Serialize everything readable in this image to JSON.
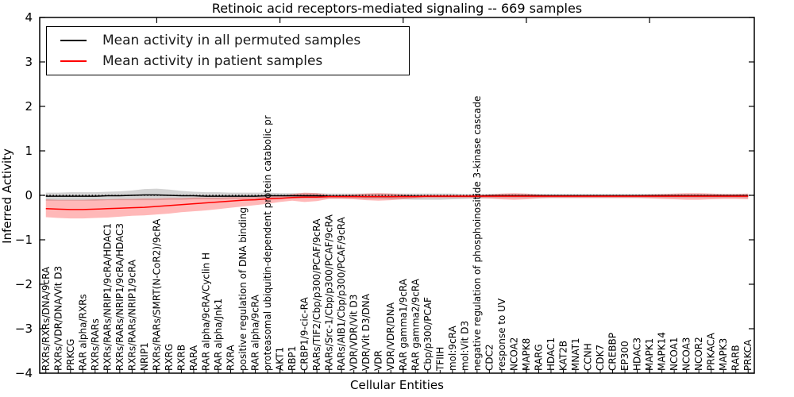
{
  "legend": {
    "items": [
      {
        "label": "Mean activity in all permuted samples",
        "color": "#000000"
      },
      {
        "label": "Mean activity in patient samples",
        "color": "#ff0000"
      }
    ]
  },
  "chart_data": {
    "type": "line",
    "title": "Retinoic acid receptors-mediated signaling -- 669 samples",
    "xlabel": "Cellular Entities",
    "ylabel": "Inferred Activity",
    "ylim": [
      -4,
      4
    ],
    "yticks": [
      4,
      3,
      2,
      1,
      0,
      -1,
      -2,
      -3,
      -4
    ],
    "yticklabels": [
      "4",
      "3",
      "2",
      "1",
      "0",
      "−1",
      "−2",
      "−3",
      "−4"
    ],
    "grid": false,
    "legend_position": "upper left",
    "zero_line": {
      "y": 0,
      "style": "dotted",
      "color": "#000000"
    },
    "categories": [
      "RXRs/RXRs/DNA/9cRA",
      "RXRs/VDR/DNA/Vit D3",
      "PRKCG",
      "RAR alpha/RXRs",
      "RXRs/RARs",
      "RXRs/RARs/NRIP1/9cRA/HDAC1",
      "RXRs/RARs/NRIP1/9cRA/HDAC3",
      "RXRs/RARs/NRIP1/9cRA",
      "NRIP1",
      "RXRs/RARs/SMRT(N-CoR2)/9cRA",
      "RXRG",
      "RXRB",
      "RARA",
      "RAR alpha/9cRA/Cyclin H",
      "RAR alpha/Jnk1",
      "RXRA",
      "positive regulation of DNA binding",
      "RAR alpha/9cRA",
      "proteasomal ubiquitin-dependent protein catabolic pr",
      "AKT1",
      "RBP1",
      "CRBP1/9-cic-RA",
      "RARs/TIF2/Cbp/p300/PCAF/9cRA",
      "RARs/Src-1/Cbp/p300/PCAF/9cRA",
      "RARs/AIB1/Cbp/p300/PCAF/9cRA",
      "VDR/VDR/Vit D3",
      "VDR/Vit D3/DNA",
      "VDR",
      "VDR/VDR/DNA",
      "RAR gamma1/9cRA",
      "RAR gamma2/9cRA",
      "Cbp/p300/PCAF",
      "TFIIH",
      "mol:9cRA",
      "mol:Vit D3",
      "negative regulation of phosphoinositide 3-kinase cascade",
      "CDC2",
      "response to UV",
      "NCOA2",
      "MAPK8",
      "RARG",
      "HDAC1",
      "KAT2B",
      "MNAT1",
      "CCNH",
      "CDK7",
      "CREBBP",
      "EP300",
      "HDAC3",
      "MAPK1",
      "MAPK14",
      "NCOA1",
      "NCOA3",
      "NCOR2",
      "PRKACA",
      "MAPK3",
      "RARB",
      "PRKCA"
    ],
    "series": [
      {
        "name": "Mean activity in all permuted samples",
        "color": "#000000",
        "values": [
          -0.02,
          -0.02,
          -0.02,
          -0.02,
          -0.02,
          -0.01,
          -0.01,
          0.0,
          0.01,
          0.01,
          0.0,
          -0.01,
          -0.01,
          -0.02,
          -0.02,
          -0.02,
          -0.02,
          -0.02,
          -0.01,
          -0.01,
          -0.01,
          -0.01,
          -0.01,
          -0.02,
          -0.02,
          -0.02,
          -0.03,
          -0.03,
          -0.03,
          -0.02,
          -0.02,
          -0.02,
          -0.02,
          -0.02,
          -0.02,
          -0.02,
          -0.01,
          -0.01,
          -0.01,
          -0.01,
          -0.01,
          -0.01,
          -0.01,
          -0.01,
          -0.01,
          -0.01,
          -0.01,
          -0.01,
          -0.01,
          -0.01,
          -0.01,
          -0.01,
          -0.01,
          -0.01,
          -0.01,
          -0.01,
          -0.01,
          -0.01
        ]
      },
      {
        "name": "Mean activity in patient samples",
        "color": "#ff0000",
        "values": [
          -0.3,
          -0.31,
          -0.32,
          -0.32,
          -0.31,
          -0.3,
          -0.29,
          -0.28,
          -0.27,
          -0.25,
          -0.23,
          -0.21,
          -0.19,
          -0.17,
          -0.15,
          -0.13,
          -0.11,
          -0.1,
          -0.08,
          -0.07,
          -0.05,
          -0.04,
          -0.04,
          -0.03,
          -0.03,
          -0.03,
          -0.03,
          -0.03,
          -0.03,
          -0.03,
          -0.03,
          -0.02,
          -0.02,
          -0.02,
          -0.02,
          -0.02,
          -0.02,
          -0.02,
          -0.02,
          -0.02,
          -0.02,
          -0.02,
          -0.02,
          -0.02,
          -0.02,
          -0.02,
          -0.02,
          -0.02,
          -0.02,
          -0.02,
          -0.02,
          -0.02,
          -0.02,
          -0.02,
          -0.02,
          -0.02,
          -0.02,
          -0.02
        ]
      }
    ],
    "bands": [
      {
        "name": "permuted-samples-range",
        "color": "#808080",
        "opacity": 0.35,
        "upper": [
          0.06,
          0.06,
          0.07,
          0.07,
          0.07,
          0.08,
          0.09,
          0.11,
          0.14,
          0.15,
          0.13,
          0.1,
          0.08,
          0.07,
          0.07,
          0.06,
          0.06,
          0.06,
          0.06,
          0.05,
          0.05,
          0.05,
          0.05,
          0.04,
          0.04,
          0.04,
          0.04,
          0.04,
          0.04,
          0.04,
          0.04,
          0.04,
          0.04,
          0.04,
          0.03,
          0.03,
          0.03,
          0.03,
          0.03,
          0.03,
          0.03,
          0.03,
          0.03,
          0.03,
          0.03,
          0.03,
          0.03,
          0.03,
          0.03,
          0.03,
          0.03,
          0.03,
          0.03,
          0.03,
          0.03,
          0.03,
          0.03,
          0.03
        ],
        "lower": [
          -0.12,
          -0.12,
          -0.12,
          -0.12,
          -0.12,
          -0.11,
          -0.11,
          -0.11,
          -0.11,
          -0.11,
          -0.1,
          -0.1,
          -0.09,
          -0.09,
          -0.09,
          -0.08,
          -0.08,
          -0.08,
          -0.08,
          -0.07,
          -0.07,
          -0.07,
          -0.07,
          -0.07,
          -0.07,
          -0.07,
          -0.08,
          -0.08,
          -0.09,
          -0.09,
          -0.1,
          -0.1,
          -0.1,
          -0.09,
          -0.08,
          -0.07,
          -0.07,
          -0.06,
          -0.06,
          -0.06,
          -0.06,
          -0.06,
          -0.06,
          -0.06,
          -0.06,
          -0.06,
          -0.06,
          -0.06,
          -0.06,
          -0.06,
          -0.06,
          -0.06,
          -0.06,
          -0.06,
          -0.06,
          -0.06,
          -0.06,
          -0.06
        ]
      },
      {
        "name": "patient-samples-range",
        "color": "#ff0000",
        "opacity": 0.28,
        "upper": [
          -0.09,
          -0.1,
          -0.1,
          -0.1,
          -0.09,
          -0.09,
          -0.08,
          -0.08,
          -0.07,
          -0.07,
          -0.06,
          -0.06,
          -0.05,
          -0.05,
          -0.05,
          -0.04,
          -0.04,
          -0.04,
          -0.03,
          -0.02,
          0.03,
          0.06,
          0.05,
          0.01,
          0.01,
          0.02,
          0.04,
          0.05,
          0.04,
          0.02,
          0.01,
          0.01,
          0.01,
          0.01,
          0.01,
          0.01,
          0.02,
          0.04,
          0.05,
          0.04,
          0.02,
          0.01,
          0.01,
          0.01,
          0.01,
          0.01,
          0.01,
          0.01,
          0.01,
          0.02,
          0.03,
          0.04,
          0.05,
          0.05,
          0.04,
          0.03,
          0.03,
          0.04
        ],
        "lower": [
          -0.49,
          -0.51,
          -0.52,
          -0.52,
          -0.51,
          -0.5,
          -0.48,
          -0.46,
          -0.45,
          -0.43,
          -0.41,
          -0.38,
          -0.36,
          -0.34,
          -0.31,
          -0.28,
          -0.25,
          -0.22,
          -0.19,
          -0.15,
          -0.12,
          -0.15,
          -0.13,
          -0.08,
          -0.08,
          -0.09,
          -0.11,
          -0.12,
          -0.11,
          -0.09,
          -0.07,
          -0.06,
          -0.06,
          -0.06,
          -0.06,
          -0.06,
          -0.07,
          -0.09,
          -0.1,
          -0.09,
          -0.07,
          -0.06,
          -0.06,
          -0.06,
          -0.06,
          -0.06,
          -0.06,
          -0.06,
          -0.06,
          -0.07,
          -0.08,
          -0.09,
          -0.1,
          -0.1,
          -0.09,
          -0.08,
          -0.08,
          -0.09
        ]
      }
    ]
  }
}
